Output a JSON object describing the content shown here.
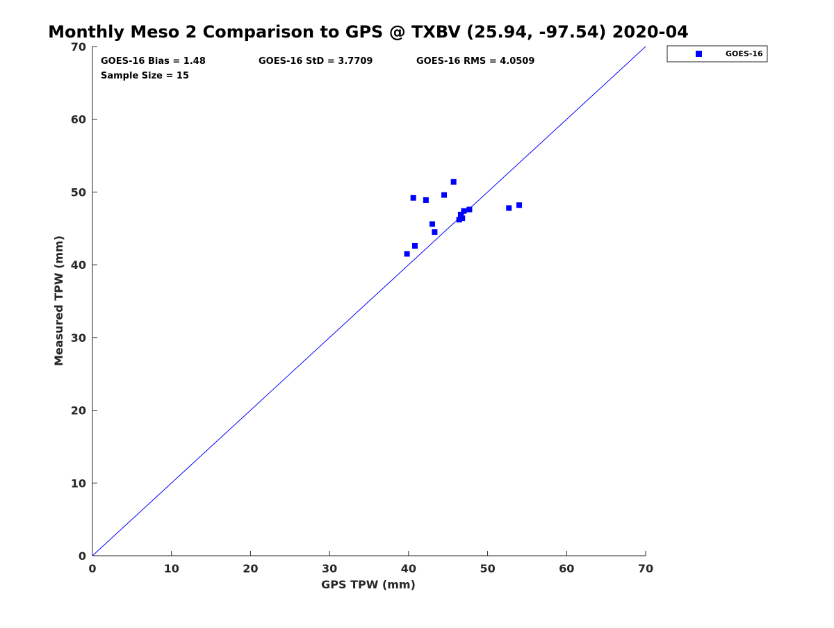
{
  "chart_data": {
    "type": "scatter",
    "title": "Monthly Meso 2 Comparison to GPS @ TXBV (25.94, -97.54) 2020-04",
    "xlabel": "GPS TPW (mm)",
    "ylabel": "Measured TPW (mm)",
    "xlim": [
      0,
      70
    ],
    "ylim": [
      0,
      70
    ],
    "xticks": [
      0,
      10,
      20,
      30,
      40,
      50,
      60,
      70
    ],
    "yticks": [
      0,
      10,
      20,
      30,
      40,
      50,
      60,
      70
    ],
    "xtick_labels": [
      "0",
      "10",
      "20",
      "30",
      "40",
      "50",
      "60",
      "70"
    ],
    "ytick_labels": [
      "0",
      "10",
      "20",
      "30",
      "40",
      "50",
      "60",
      "70"
    ],
    "grid": false,
    "legend_position": "outside-top-right",
    "series": [
      {
        "name": "GOES-16",
        "color": "#0000ff",
        "marker": "square",
        "x": [
          39.8,
          40.6,
          40.8,
          42.2,
          43.0,
          43.3,
          44.5,
          45.7,
          46.4,
          46.6,
          46.8,
          47.0,
          47.7,
          52.7,
          54.0
        ],
        "y": [
          41.5,
          49.2,
          42.6,
          48.9,
          45.6,
          44.5,
          49.6,
          51.4,
          46.2,
          46.9,
          46.4,
          47.4,
          47.6,
          47.8,
          48.2
        ]
      }
    ],
    "reference_line": {
      "x": [
        0,
        70
      ],
      "y": [
        0,
        70
      ],
      "color": "#0000ff"
    },
    "stats": {
      "bias": "GOES-16 Bias = 1.48",
      "std": "GOES-16 StD = 3.7709",
      "rms": "GOES-16 RMS = 4.0509",
      "sample_size": "Sample Size = 15"
    }
  }
}
